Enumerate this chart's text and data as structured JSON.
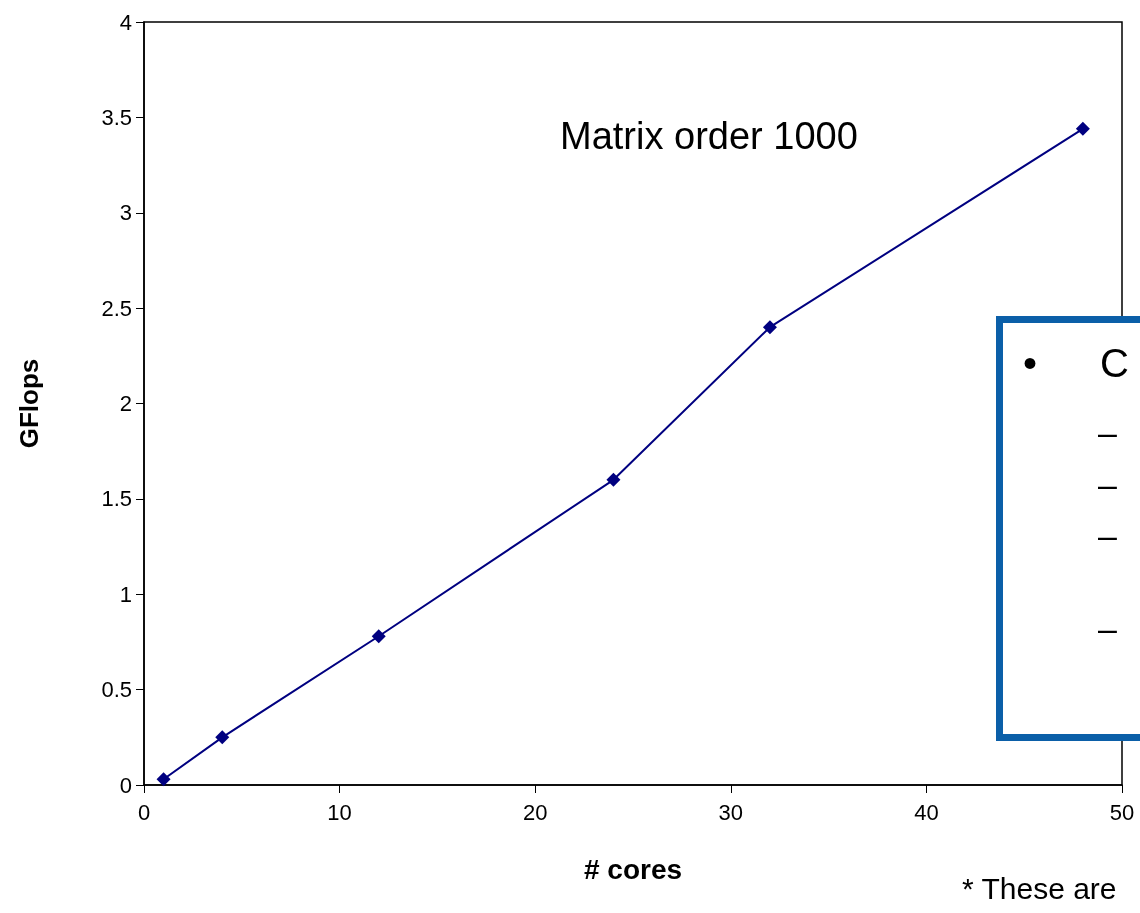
{
  "chart_data": {
    "type": "line",
    "xlabel": "# cores",
    "ylabel": "GFlops",
    "x": [
      1,
      4,
      12,
      24,
      32,
      48
    ],
    "series": [
      {
        "color": "#000080",
        "values": [
          0.03,
          0.25,
          0.78,
          1.6,
          2.4,
          3.44
        ]
      }
    ],
    "xlim": [
      0,
      50
    ],
    "xticks": [
      0,
      10,
      20,
      30,
      40,
      50
    ],
    "ylim": [
      0,
      4
    ],
    "yticks": [
      0,
      0.5,
      1,
      1.5,
      2,
      2.5,
      3,
      3.5,
      4
    ],
    "grid": false,
    "marker": "diamond",
    "line_style": "solid",
    "annotations": [
      "Matrix order 1000",
      "• C",
      "–",
      "–",
      "–",
      "–",
      "* These are"
    ]
  }
}
